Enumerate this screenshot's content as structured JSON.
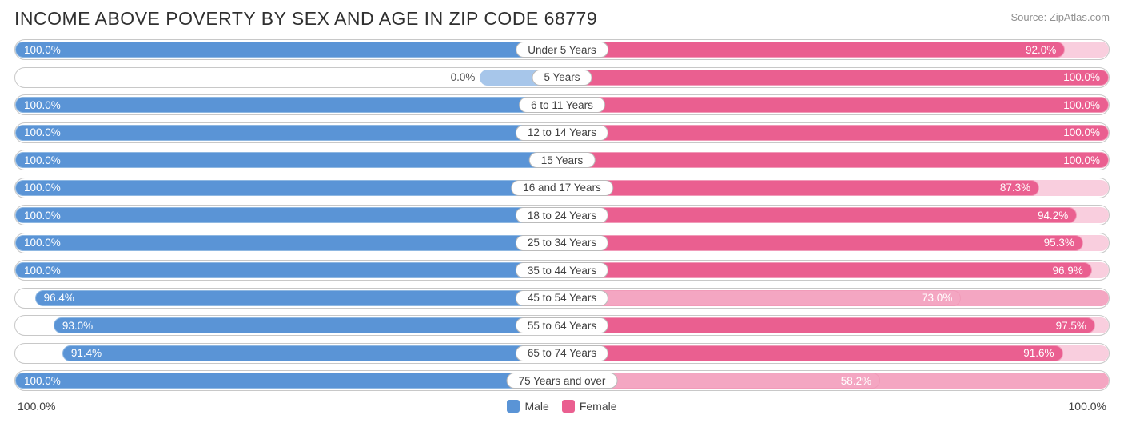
{
  "title": "INCOME ABOVE POVERTY BY SEX AND AGE IN ZIP CODE 68779",
  "source": "Source: ZipAtlas.com",
  "axis": {
    "left": "100.0%",
    "right": "100.0%"
  },
  "legend": {
    "male": "Male",
    "female": "Female"
  },
  "colors": {
    "male_fill": "#5a94d6",
    "male_light": "#a7c6ea",
    "male_border": "#8fb8e2",
    "female_fill": "#ea5f90",
    "female_light": "#f4a6c2",
    "female_border": "#f19bb9",
    "row_border": "#c8c8c8",
    "text_white": "#ffffff"
  },
  "rows": [
    {
      "label": "Under 5 Years",
      "male": 100.0,
      "male_txt": "100.0%",
      "female": 92.0,
      "female_txt": "92.0%"
    },
    {
      "label": "5 Years",
      "male": 0.0,
      "male_txt": "0.0%",
      "male_lightbar": 15,
      "female": 100.0,
      "female_txt": "100.0%"
    },
    {
      "label": "6 to 11 Years",
      "male": 100.0,
      "male_txt": "100.0%",
      "female": 100.0,
      "female_txt": "100.0%"
    },
    {
      "label": "12 to 14 Years",
      "male": 100.0,
      "male_txt": "100.0%",
      "female": 100.0,
      "female_txt": "100.0%"
    },
    {
      "label": "15 Years",
      "male": 100.0,
      "male_txt": "100.0%",
      "female": 100.0,
      "female_txt": "100.0%"
    },
    {
      "label": "16 and 17 Years",
      "male": 100.0,
      "male_txt": "100.0%",
      "female": 87.3,
      "female_txt": "87.3%"
    },
    {
      "label": "18 to 24 Years",
      "male": 100.0,
      "male_txt": "100.0%",
      "female": 94.2,
      "female_txt": "94.2%"
    },
    {
      "label": "25 to 34 Years",
      "male": 100.0,
      "male_txt": "100.0%",
      "female": 95.3,
      "female_txt": "95.3%"
    },
    {
      "label": "35 to 44 Years",
      "male": 100.0,
      "male_txt": "100.0%",
      "female": 96.9,
      "female_txt": "96.9%"
    },
    {
      "label": "45 to 54 Years",
      "male": 96.4,
      "male_txt": "96.4%",
      "female": 73.0,
      "female_txt": "73.0%",
      "female_light": true
    },
    {
      "label": "55 to 64 Years",
      "male": 93.0,
      "male_txt": "93.0%",
      "female": 97.5,
      "female_txt": "97.5%"
    },
    {
      "label": "65 to 74 Years",
      "male": 91.4,
      "male_txt": "91.4%",
      "female": 91.6,
      "female_txt": "91.6%"
    },
    {
      "label": "75 Years and over",
      "male": 100.0,
      "male_txt": "100.0%",
      "female": 58.2,
      "female_txt": "58.2%",
      "female_light": true
    }
  ]
}
